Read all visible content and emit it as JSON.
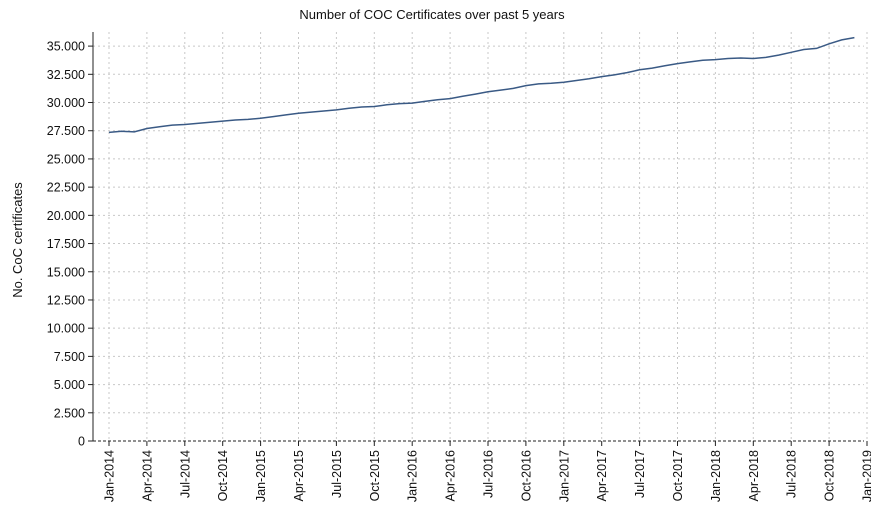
{
  "chart_data": {
    "type": "line",
    "title": "Number of COC Certificates over past 5 years",
    "ylabel": "No. CoC certificates",
    "xlabel": "",
    "ylim": [
      0,
      36250
    ],
    "yticks": [
      0,
      2500,
      5000,
      7500,
      10000,
      12500,
      15000,
      17500,
      20000,
      22500,
      25000,
      27500,
      30000,
      32500,
      35000
    ],
    "ytick_labels": [
      "0",
      "2.500",
      "5.000",
      "7.500",
      "10.000",
      "12.500",
      "15.000",
      "17.500",
      "20.000",
      "22.500",
      "25.000",
      "27.500",
      "30.000",
      "32.500",
      "35.000"
    ],
    "xtick_labels": [
      "Jan-2014",
      "Apr-2014",
      "Jul-2014",
      "Oct-2014",
      "Jan-2015",
      "Apr-2015",
      "Jul-2015",
      "Oct-2015",
      "Jan-2016",
      "Apr-2016",
      "Jul-2016",
      "Oct-2016",
      "Jan-2017",
      "Apr-2017",
      "Jul-2017",
      "Oct-2017",
      "Jan-2018",
      "Apr-2018",
      "Jul-2018",
      "Oct-2018",
      "Jan-2019"
    ],
    "x": [
      "2014-01",
      "2014-02",
      "2014-03",
      "2014-04",
      "2014-05",
      "2014-06",
      "2014-07",
      "2014-08",
      "2014-09",
      "2014-10",
      "2014-11",
      "2014-12",
      "2015-01",
      "2015-02",
      "2015-03",
      "2015-04",
      "2015-05",
      "2015-06",
      "2015-07",
      "2015-08",
      "2015-09",
      "2015-10",
      "2015-11",
      "2015-12",
      "2016-01",
      "2016-02",
      "2016-03",
      "2016-04",
      "2016-05",
      "2016-06",
      "2016-07",
      "2016-08",
      "2016-09",
      "2016-10",
      "2016-11",
      "2016-12",
      "2017-01",
      "2017-02",
      "2017-03",
      "2017-04",
      "2017-05",
      "2017-06",
      "2017-07",
      "2017-08",
      "2017-09",
      "2017-10",
      "2017-11",
      "2017-12",
      "2018-01",
      "2018-02",
      "2018-03",
      "2018-04",
      "2018-05",
      "2018-06",
      "2018-07",
      "2018-08",
      "2018-09",
      "2018-10",
      "2018-11",
      "2018-12"
    ],
    "series": [
      {
        "values": [
          27350,
          27450,
          27400,
          27700,
          27850,
          28000,
          28050,
          28150,
          28250,
          28350,
          28450,
          28500,
          28600,
          28750,
          28900,
          29050,
          29150,
          29250,
          29350,
          29500,
          29600,
          29650,
          29800,
          29900,
          29950,
          30100,
          30250,
          30350,
          30550,
          30750,
          30950,
          31100,
          31250,
          31500,
          31650,
          31700,
          31800,
          31950,
          32100,
          32300,
          32450,
          32650,
          32900,
          33050,
          33250,
          33450,
          33600,
          33750,
          33800,
          33900,
          33950,
          33900,
          34000,
          34200,
          34450,
          34700,
          34800,
          35200,
          35550,
          35750
        ],
        "color": "#3a5a85"
      }
    ],
    "grid": true,
    "legend": "none"
  }
}
